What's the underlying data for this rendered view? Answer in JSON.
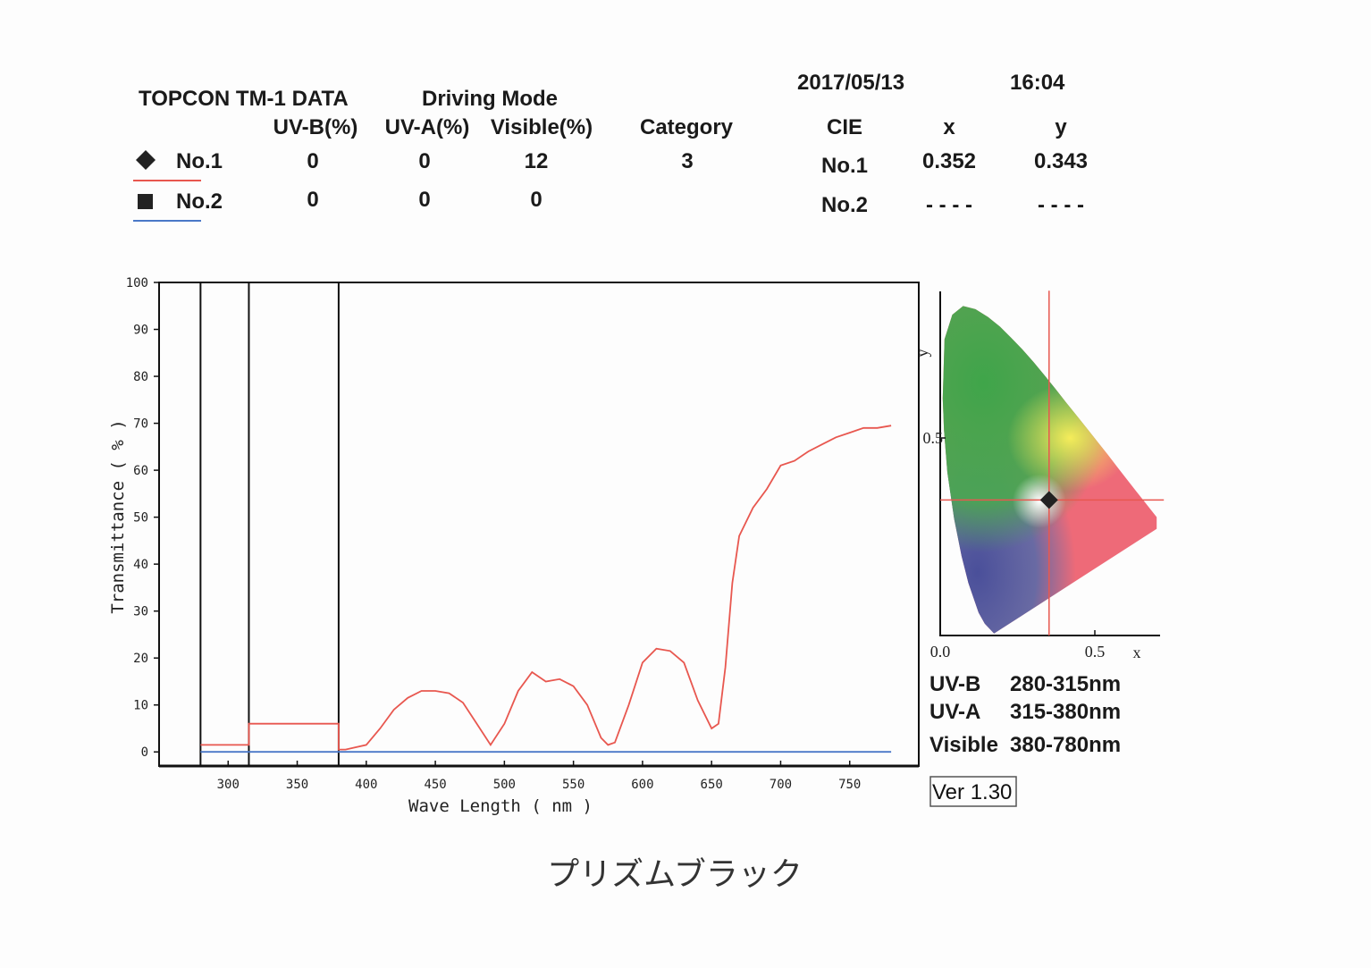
{
  "header": {
    "title": "TOPCON TM-1 DATA",
    "mode": "Driving Mode",
    "date": "2017/05/13",
    "time": "16:04",
    "columns": [
      "UV-B(%)",
      "UV-A(%)",
      "Visible(%)",
      "Category"
    ],
    "rows": [
      {
        "values": [
          0,
          0,
          12,
          3
        ]
      },
      {
        "values": [
          0,
          0,
          0
        ]
      }
    ],
    "cie": {
      "label": "CIE",
      "columns": [
        "x",
        "y"
      ],
      "rows": [
        {
          "name": "No.1",
          "values": [
            0.352,
            0.343
          ]
        },
        {
          "name": "No.2",
          "values": [
            "- - - -",
            "- - - -"
          ]
        }
      ]
    }
  },
  "chart_data": [
    {
      "type": "line",
      "xlabel": "Wave Length ( nm )",
      "ylabel": "Transmittance ( % )",
      "xlim": [
        250,
        800
      ],
      "ylim": [
        -3,
        100
      ],
      "xticks": [
        300,
        350,
        400,
        450,
        500,
        550,
        600,
        650,
        700,
        750
      ],
      "yticks": [
        0,
        10,
        20,
        30,
        40,
        50,
        60,
        70,
        80,
        90,
        100
      ],
      "boundaries": [
        280,
        315,
        380
      ],
      "series": [
        {
          "name": "No.1",
          "color": "#e8574f",
          "x": [
            280,
            315,
            315,
            380,
            380,
            385,
            400,
            410,
            420,
            430,
            440,
            450,
            460,
            470,
            480,
            490,
            500,
            510,
            520,
            530,
            540,
            550,
            560,
            570,
            575,
            580,
            590,
            600,
            610,
            620,
            630,
            640,
            650,
            655,
            660,
            665,
            670,
            680,
            690,
            700,
            710,
            720,
            730,
            740,
            750,
            760,
            770,
            780
          ],
          "values": [
            1.5,
            1.5,
            6,
            6,
            0.5,
            0.5,
            1.5,
            5,
            9,
            11.5,
            13,
            13,
            12.5,
            10.5,
            6,
            1.5,
            6,
            13,
            17,
            15,
            15.5,
            14,
            10,
            3,
            1.5,
            2,
            10,
            19,
            22,
            21.5,
            19,
            11,
            5,
            6,
            18,
            36,
            46,
            52,
            56,
            61,
            62,
            64,
            65.5,
            67,
            68,
            69,
            69,
            69.5
          ]
        },
        {
          "name": "No.2",
          "color": "#4a78c8",
          "x": [
            280,
            780
          ],
          "values": [
            0,
            0
          ]
        }
      ]
    },
    {
      "type": "scatter",
      "xlabel": "x",
      "ylabel": "y",
      "xlim": [
        0,
        0.7
      ],
      "ylim": [
        0,
        0.85
      ],
      "xticks": [
        {
          "value": 0,
          "label": "0.0"
        },
        0.5
      ],
      "yticks": [
        0.5
      ],
      "series": [
        {
          "color": "#e8574f",
          "x": [
            0.352
          ],
          "values": [
            0.343
          ]
        }
      ]
    }
  ],
  "ranges": [
    {
      "name": "UV-B",
      "range": "280-315nm"
    },
    {
      "name": "UV-A",
      "range": "315-380nm"
    },
    {
      "name": "Visible",
      "range": "380-780nm"
    }
  ],
  "version": "Ver 1.30",
  "note": "プリズムブラック"
}
